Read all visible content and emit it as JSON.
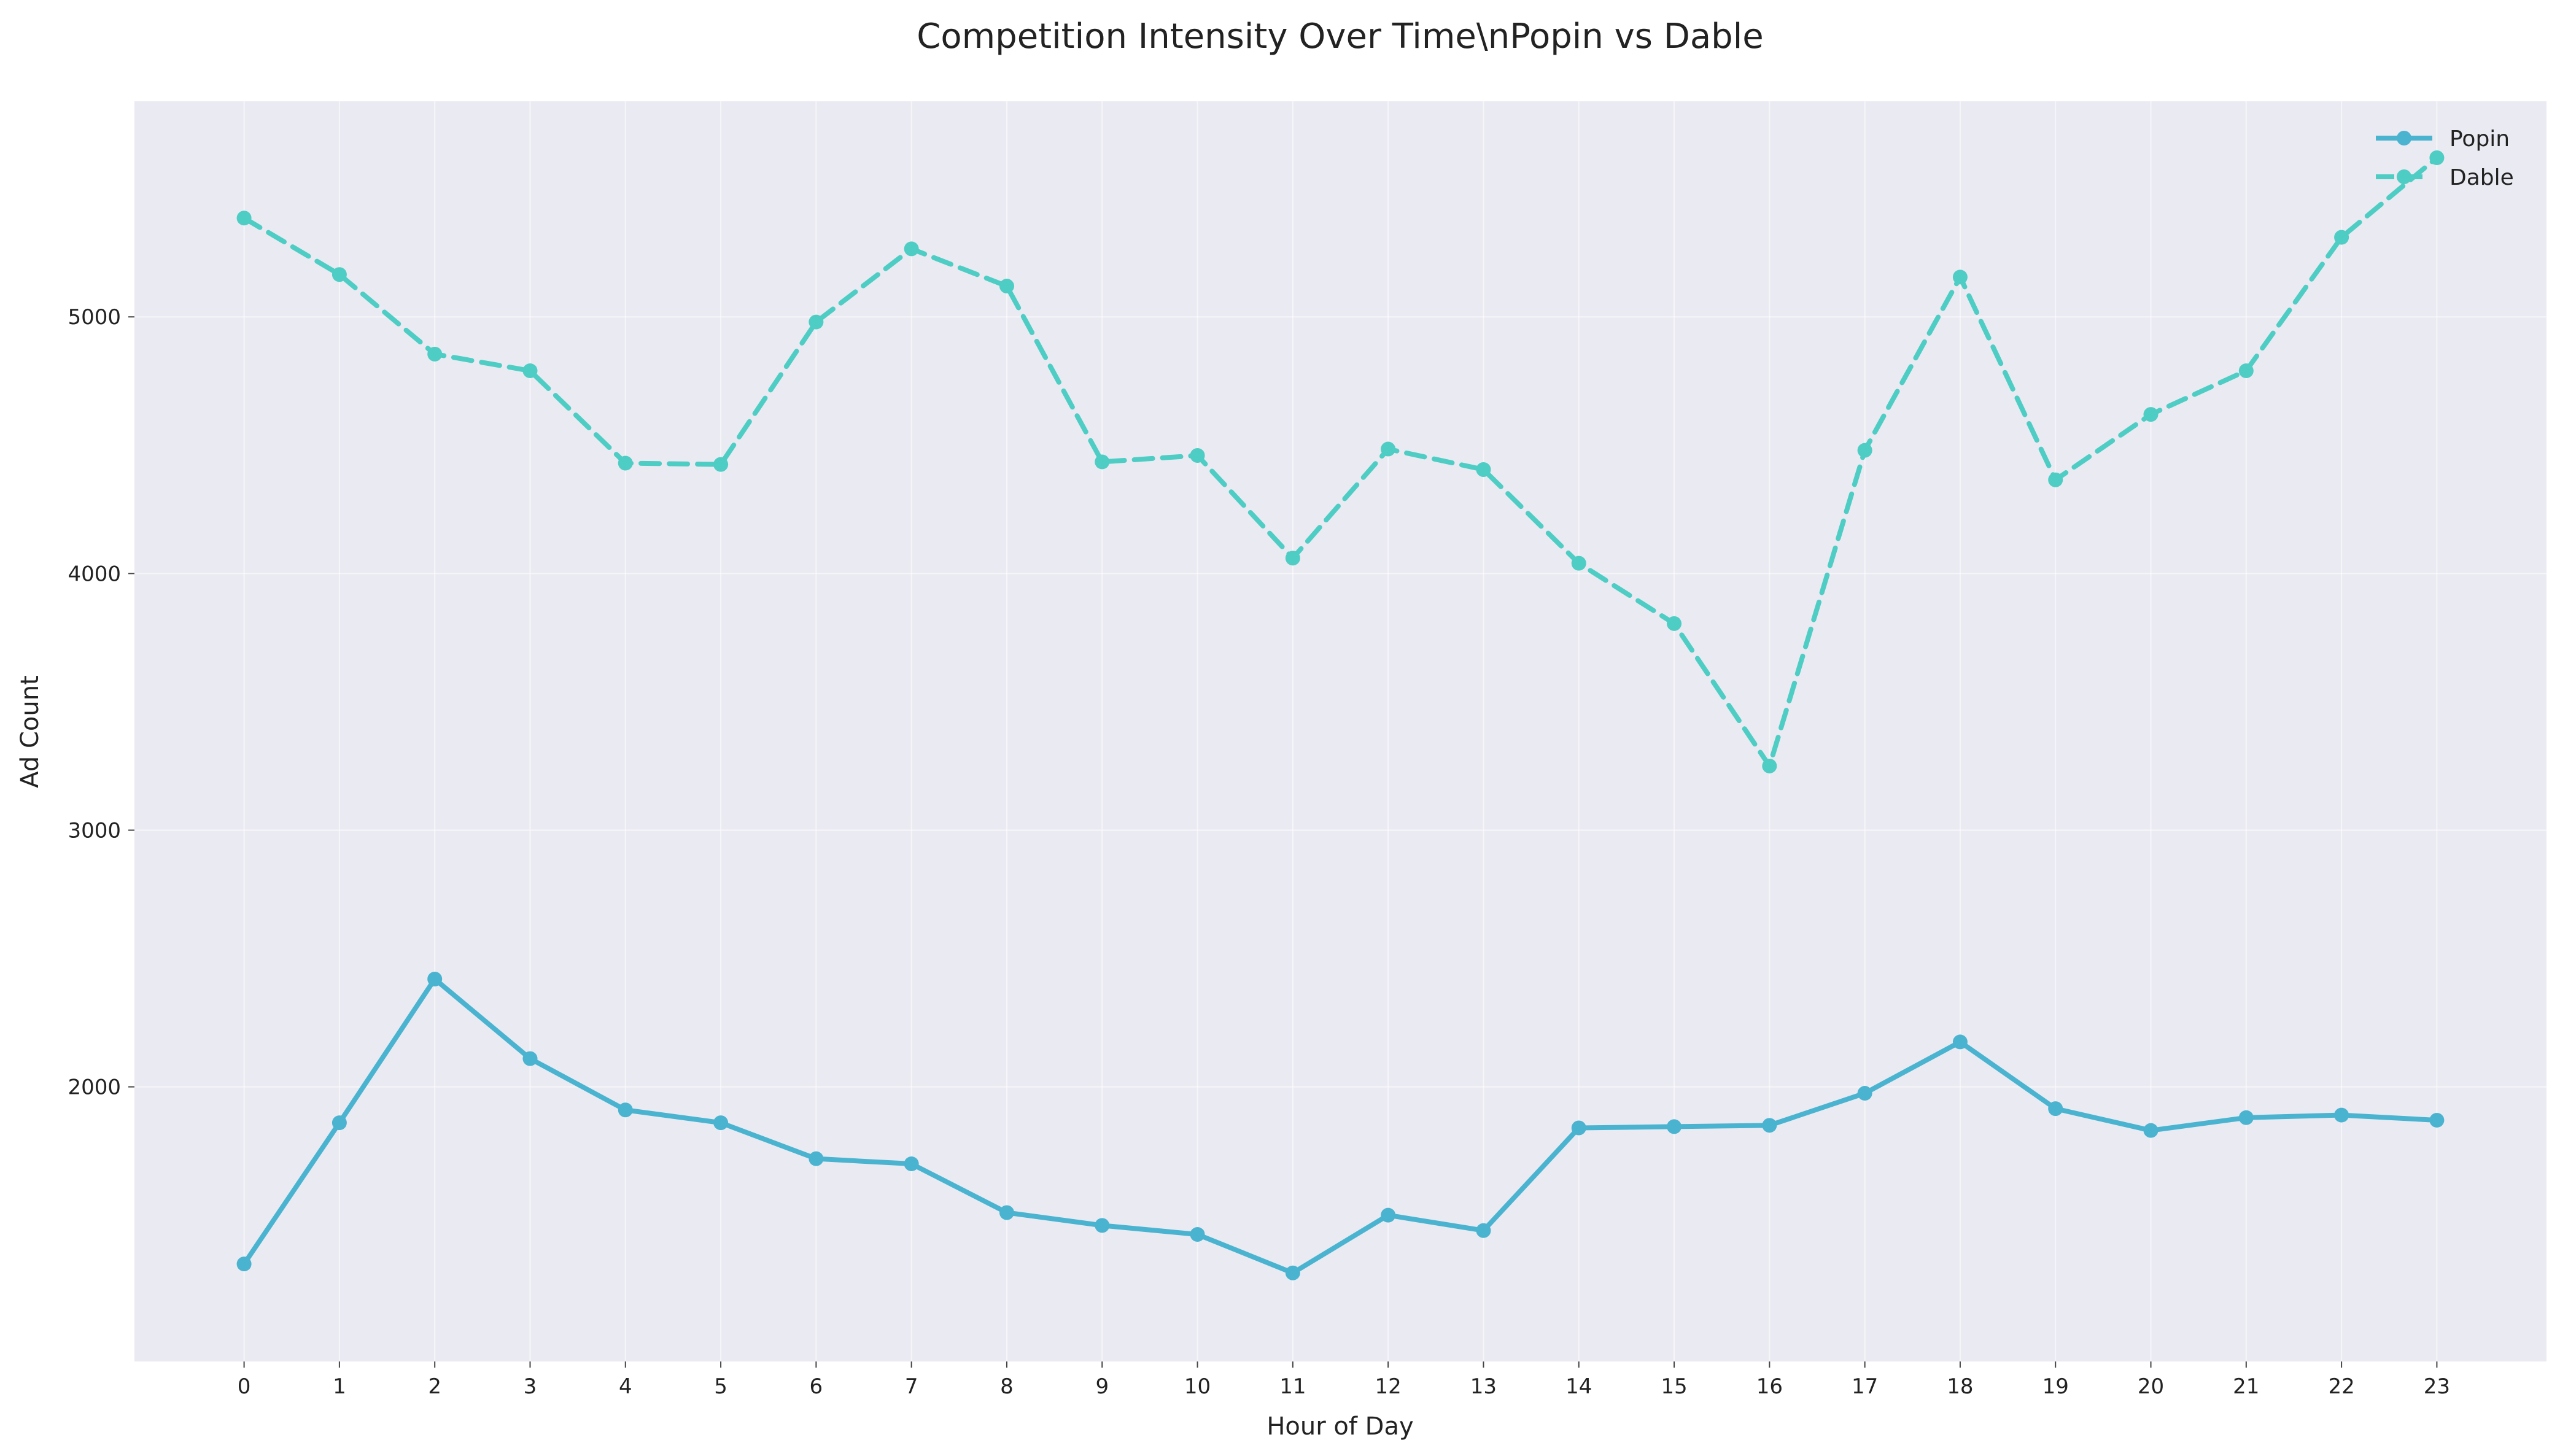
{
  "chart_data": {
    "type": "line",
    "title": "Competition Intensity Over Time\\nPopin vs Dable",
    "xlabel": "Hour of Day",
    "ylabel": "Ad Count",
    "x": [
      0,
      1,
      2,
      3,
      4,
      5,
      6,
      7,
      8,
      9,
      10,
      11,
      12,
      13,
      14,
      15,
      16,
      17,
      18,
      19,
      20,
      21,
      22,
      23
    ],
    "x_tick_labels": [
      "0",
      "1",
      "2",
      "3",
      "4",
      "5",
      "6",
      "7",
      "8",
      "9",
      "10",
      "11",
      "12",
      "13",
      "14",
      "15",
      "16",
      "17",
      "18",
      "19",
      "20",
      "21",
      "22",
      "23"
    ],
    "y_ticks": [
      2000,
      3000,
      4000,
      5000
    ],
    "y_tick_labels": [
      "2000",
      "3000",
      "4000",
      "5000"
    ],
    "xlim": [
      -1.15,
      24.15
    ],
    "ylim": [
      930,
      5840
    ],
    "grid": true,
    "legend_position": "top-right",
    "series": [
      {
        "name": "Popin",
        "color": "#4AB4D0",
        "line_style": "solid",
        "values": [
          1310,
          1860,
          2420,
          2110,
          1910,
          1860,
          1720,
          1700,
          1510,
          1460,
          1425,
          1275,
          1500,
          1440,
          1840,
          1845,
          1850,
          1975,
          2175,
          1915,
          1830,
          1880,
          1890,
          1870
        ]
      },
      {
        "name": "Dable",
        "color": "#4ECDC4",
        "line_style": "dashed",
        "values": [
          5385,
          5165,
          4855,
          4790,
          4430,
          4425,
          4980,
          5265,
          5120,
          4435,
          4460,
          4060,
          4485,
          4405,
          4040,
          3805,
          3250,
          4480,
          5155,
          4365,
          4620,
          4790,
          5310,
          5620
        ]
      }
    ],
    "colors": {
      "plot_background": "#EAEAF2",
      "grid": "#FFFFFF"
    }
  }
}
